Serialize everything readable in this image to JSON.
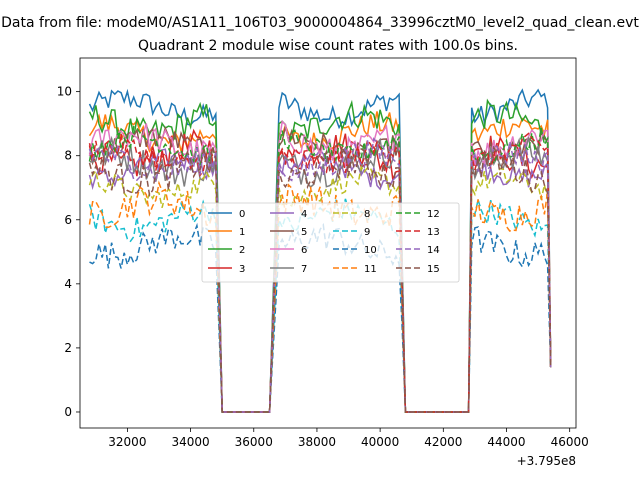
{
  "chart_data": {
    "type": "line",
    "suptitle": "Data from file: modeM0/AS1A11_106T03_9000004864_33996cztM0_level2_quad_clean.evt",
    "title": "Quadrant 2 module wise count rates with 100.0s bins.",
    "xlabel": "",
    "ylabel": "",
    "x_offset_label": "+3.795e8",
    "xlim": [
      30500,
      46200
    ],
    "ylim": [
      -0.5,
      11.05
    ],
    "x_ticks": [
      32000,
      34000,
      36000,
      38000,
      40000,
      42000,
      44000,
      46000
    ],
    "y_ticks": [
      0,
      2,
      4,
      6,
      8,
      10
    ],
    "x_range": [
      30800,
      45400
    ],
    "bin_size": 100,
    "segments": [
      {
        "start": 30800,
        "end": 34800,
        "state": "on"
      },
      {
        "start": 34800,
        "end": 35000,
        "state": "falling"
      },
      {
        "start": 35000,
        "end": 36500,
        "state": "zero"
      },
      {
        "start": 36500,
        "end": 36800,
        "state": "rising"
      },
      {
        "start": 36800,
        "end": 40600,
        "state": "on"
      },
      {
        "start": 40600,
        "end": 40800,
        "state": "falling"
      },
      {
        "start": 40800,
        "end": 42800,
        "state": "zero"
      },
      {
        "start": 42800,
        "end": 42900,
        "state": "rising"
      },
      {
        "start": 42900,
        "end": 45400,
        "state": "on"
      }
    ],
    "legend": {
      "location": "center",
      "ncol": 4
    },
    "series": [
      {
        "name": "0",
        "color": "#1f77b4",
        "style": "solid",
        "level": 9.5
      },
      {
        "name": "1",
        "color": "#ff7f0e",
        "style": "solid",
        "level": 8.7
      },
      {
        "name": "2",
        "color": "#2ca02c",
        "style": "solid",
        "level": 9.0
      },
      {
        "name": "3",
        "color": "#d62728",
        "style": "solid",
        "level": 8.0
      },
      {
        "name": "4",
        "color": "#9467bd",
        "style": "solid",
        "level": 7.6
      },
      {
        "name": "5",
        "color": "#8c564b",
        "style": "solid",
        "level": 8.3
      },
      {
        "name": "6",
        "color": "#e377c2",
        "style": "solid",
        "level": 8.4
      },
      {
        "name": "7",
        "color": "#7f7f7f",
        "style": "solid",
        "level": 7.8
      },
      {
        "name": "8",
        "color": "#bcbd22",
        "style": "dashed",
        "level": 7.0
      },
      {
        "name": "9",
        "color": "#17becf",
        "style": "dashed",
        "level": 6.0
      },
      {
        "name": "10",
        "color": "#1f77b4",
        "style": "dashed",
        "level": 5.2
      },
      {
        "name": "11",
        "color": "#ff7f0e",
        "style": "dashed",
        "level": 6.4
      },
      {
        "name": "12",
        "color": "#2ca02c",
        "style": "dashed",
        "level": 8.3
      },
      {
        "name": "13",
        "color": "#d62728",
        "style": "dashed",
        "level": 8.0
      },
      {
        "name": "14",
        "color": "#9467bd",
        "style": "dashed",
        "level": 7.8
      },
      {
        "name": "15",
        "color": "#8c564b",
        "style": "dashed",
        "level": 7.5
      }
    ]
  }
}
